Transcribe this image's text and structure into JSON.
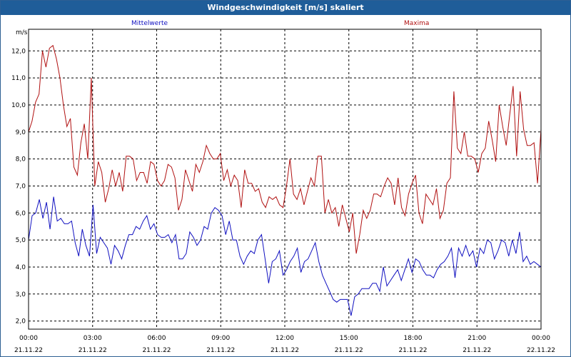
{
  "window": {
    "title": "Windgeschwindigkeit [m/s] skaliert"
  },
  "colors": {
    "mean": "#1010c0",
    "max": "#b01010",
    "titlebar": "#1f5d99"
  },
  "chart_data": {
    "type": "line",
    "title": "Windgeschwindigkeit [m/s] skaliert",
    "ylabel": "m/s",
    "ylim": [
      1.7,
      12.8
    ],
    "yticks": [
      "2,0",
      "3,0",
      "4,0",
      "5,0",
      "6,0",
      "7,0",
      "8,0",
      "9,0",
      "10,0",
      "11,0",
      "12,0"
    ],
    "ytick_values": [
      2,
      3,
      4,
      5,
      6,
      7,
      8,
      9,
      10,
      11,
      12
    ],
    "xticks": [
      {
        "time": "00:00",
        "date": "21.11.22"
      },
      {
        "time": "03:00",
        "date": "21.11.22"
      },
      {
        "time": "06:00",
        "date": "21.11.22"
      },
      {
        "time": "09:00",
        "date": "21.11.22"
      },
      {
        "time": "12:00",
        "date": "21.11.22"
      },
      {
        "time": "15:00",
        "date": "21.11.22"
      },
      {
        "time": "18:00",
        "date": "21.11.22"
      },
      {
        "time": "21:00",
        "date": "21.11.22"
      },
      {
        "time": "00:00",
        "date": "22.11.22"
      }
    ],
    "grid": true,
    "series": [
      {
        "name": "Mittelwerte",
        "color": "#1010c0",
        "values": [
          5.0,
          5.9,
          6.0,
          6.5,
          5.8,
          6.4,
          5.4,
          6.6,
          5.7,
          5.8,
          5.6,
          5.6,
          5.7,
          4.9,
          4.4,
          5.4,
          4.8,
          4.4,
          6.3,
          4.5,
          5.1,
          4.9,
          4.7,
          4.1,
          4.8,
          4.6,
          4.3,
          4.8,
          5.2,
          5.2,
          5.5,
          5.4,
          5.7,
          5.9,
          5.4,
          5.6,
          5.2,
          5.1,
          5.1,
          5.2,
          4.9,
          5.2,
          4.3,
          4.3,
          4.5,
          5.3,
          5.1,
          4.8,
          5.0,
          5.5,
          5.4,
          6.0,
          6.2,
          6.1,
          5.9,
          5.2,
          5.7,
          5.0,
          5.0,
          4.4,
          4.1,
          4.4,
          4.6,
          4.5,
          5.0,
          5.2,
          4.3,
          3.4,
          4.2,
          4.3,
          4.6,
          3.7,
          3.9,
          4.2,
          4.4,
          4.7,
          3.8,
          4.2,
          4.3,
          4.6,
          4.9,
          4.2,
          3.7,
          3.4,
          3.1,
          2.8,
          2.7,
          2.8,
          2.8,
          2.8,
          2.2,
          2.9,
          3.0,
          3.2,
          3.2,
          3.2,
          3.4,
          3.4,
          3.1,
          4.0,
          3.3,
          3.5,
          3.7,
          3.9,
          3.5,
          3.9,
          4.3,
          3.8,
          4.3,
          4.2,
          3.9,
          3.7,
          3.7,
          3.6,
          3.9,
          4.1,
          4.2,
          4.4,
          4.7,
          3.6,
          4.7,
          4.4,
          4.8,
          4.4,
          4.6,
          4.0,
          4.7,
          4.5,
          5.0,
          4.9,
          4.3,
          4.6,
          5.0,
          4.9,
          4.4,
          5.0,
          4.5,
          5.3,
          4.2,
          4.4,
          4.1,
          4.2,
          4.1,
          4.0
        ]
      },
      {
        "name": "Maxima",
        "color": "#b01010",
        "values": [
          9.0,
          9.4,
          10.1,
          10.4,
          12.0,
          11.4,
          12.1,
          12.2,
          11.7,
          11.0,
          10.0,
          9.2,
          9.5,
          7.7,
          7.4,
          8.6,
          9.3,
          8.0,
          11.0,
          7.0,
          7.9,
          7.5,
          6.4,
          6.9,
          7.6,
          7.0,
          7.5,
          6.8,
          8.1,
          8.1,
          8.0,
          7.2,
          7.5,
          7.5,
          7.1,
          7.9,
          7.8,
          7.2,
          7.0,
          7.2,
          7.8,
          7.7,
          7.3,
          6.1,
          6.5,
          7.6,
          7.2,
          6.8,
          7.8,
          7.5,
          7.9,
          8.5,
          8.2,
          8.0,
          8.0,
          8.2,
          7.2,
          7.6,
          7.0,
          7.4,
          7.2,
          6.2,
          7.6,
          7.1,
          7.1,
          6.8,
          6.9,
          6.4,
          6.2,
          6.6,
          6.5,
          6.6,
          6.3,
          6.2,
          7.0,
          8.0,
          6.7,
          6.5,
          6.9,
          6.3,
          6.8,
          7.3,
          7.0,
          8.1,
          8.1,
          6.0,
          6.5,
          6.0,
          6.2,
          5.5,
          6.3,
          5.8,
          5.3,
          6.0,
          4.5,
          5.2,
          6.1,
          5.8,
          6.1,
          6.7,
          6.7,
          6.6,
          7.0,
          7.3,
          7.1,
          6.3,
          7.3,
          6.2,
          5.9,
          6.7,
          7.1,
          7.4,
          6.0,
          5.6,
          6.7,
          6.5,
          6.3,
          6.9,
          5.8,
          6.1,
          7.1,
          7.3,
          10.5,
          8.4,
          8.2,
          9.0,
          8.1,
          8.1,
          8.0,
          7.5,
          8.2,
          8.4,
          9.4,
          8.7,
          7.9,
          10.0,
          9.2,
          8.5,
          9.6,
          10.7,
          8.1,
          10.5,
          9.1,
          8.5,
          8.5,
          8.6,
          7.1,
          9.1
        ]
      }
    ]
  }
}
